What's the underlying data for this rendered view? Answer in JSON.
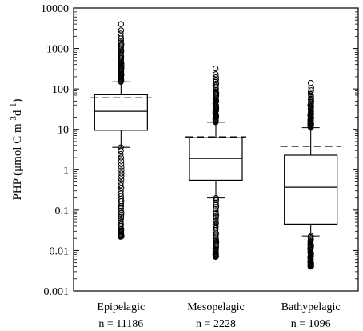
{
  "chart_data": {
    "type": "box",
    "yscale": "log",
    "ylim": [
      0.001,
      10000
    ],
    "yticks": [
      0.001,
      0.01,
      0.1,
      1,
      10,
      100,
      1000,
      10000
    ],
    "yticklabels": [
      "0.001",
      "0.01",
      "0.1",
      "1",
      "10",
      "100",
      "1000",
      "10000"
    ],
    "ylabel": {
      "prefix": "PHP (μmol C m",
      "exp1": "-3",
      "middle": "d",
      "exp2": "-1",
      "suffix": ")"
    },
    "xlabel": "",
    "grid": false,
    "legend": "none",
    "categories": [
      {
        "name": "Epipelagic",
        "n_label": "n = 11186",
        "whisker_low": 3.6,
        "q1": 9.5,
        "median": 28,
        "q3": 72,
        "whisker_high": 150,
        "mean": 60,
        "outliers_low_range": [
          0.022,
          3.6
        ],
        "outliers_high_range": [
          150,
          4000
        ]
      },
      {
        "name": "Mesopelagic",
        "n_label": "n = 2228",
        "whisker_low": 0.2,
        "q1": 0.55,
        "median": 1.9,
        "q3": 6.2,
        "whisker_high": 15,
        "mean": 6.5,
        "outliers_low_range": [
          0.007,
          0.2
        ],
        "outliers_high_range": [
          15,
          320
        ]
      },
      {
        "name": "Bathypelagic",
        "n_label": "n = 1096",
        "whisker_low": 0.023,
        "q1": 0.045,
        "median": 0.37,
        "q3": 2.3,
        "whisker_high": 11,
        "mean": 3.8,
        "outliers_low_range": [
          0.004,
          0.023
        ],
        "outliers_high_range": [
          11,
          140
        ]
      }
    ]
  }
}
